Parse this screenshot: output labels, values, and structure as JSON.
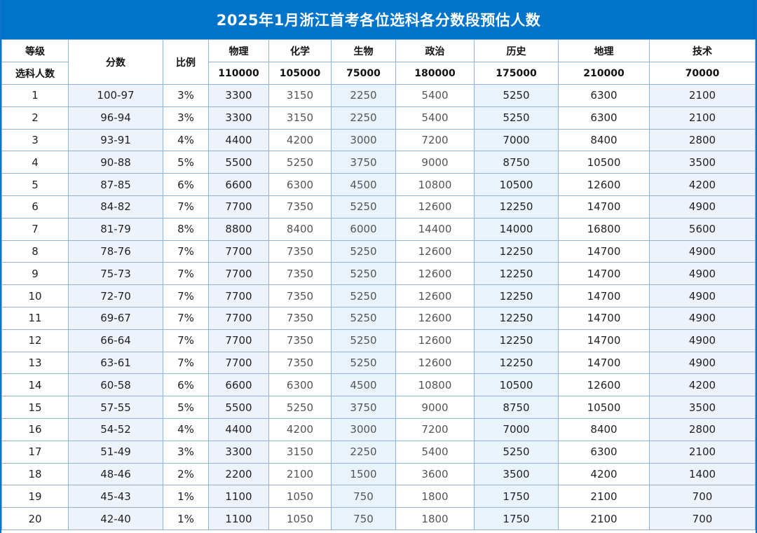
{
  "title": "2025年1月浙江首考各位选科各分数段预估人数",
  "header": {
    "grade_label": "等级",
    "enroll_label": "选科人数",
    "score_label": "分数",
    "ratio_label": "比例",
    "subjects": [
      {
        "name": "物理",
        "total": "110000"
      },
      {
        "name": "化学",
        "total": "105000"
      },
      {
        "name": "生物",
        "total": "75000"
      },
      {
        "name": "政治",
        "total": "180000"
      },
      {
        "name": "历史",
        "total": "175000"
      },
      {
        "name": "地理",
        "total": "210000"
      },
      {
        "name": "技术",
        "total": "70000"
      }
    ]
  },
  "rows": [
    {
      "grade": "1",
      "score": "100-97",
      "ratio": "3%",
      "v": [
        "3300",
        "3150",
        "2250",
        "5400",
        "5250",
        "6300",
        "2100"
      ]
    },
    {
      "grade": "2",
      "score": "96-94",
      "ratio": "3%",
      "v": [
        "3300",
        "3150",
        "2250",
        "5400",
        "5250",
        "6300",
        "2100"
      ]
    },
    {
      "grade": "3",
      "score": "93-91",
      "ratio": "4%",
      "v": [
        "4400",
        "4200",
        "3000",
        "7200",
        "7000",
        "8400",
        "2800"
      ]
    },
    {
      "grade": "4",
      "score": "90-88",
      "ratio": "5%",
      "v": [
        "5500",
        "5250",
        "3750",
        "9000",
        "8750",
        "10500",
        "3500"
      ]
    },
    {
      "grade": "5",
      "score": "87-85",
      "ratio": "6%",
      "v": [
        "6600",
        "6300",
        "4500",
        "10800",
        "10500",
        "12600",
        "4200"
      ]
    },
    {
      "grade": "6",
      "score": "84-82",
      "ratio": "7%",
      "v": [
        "7700",
        "7350",
        "5250",
        "12600",
        "12250",
        "14700",
        "4900"
      ]
    },
    {
      "grade": "7",
      "score": "81-79",
      "ratio": "8%",
      "v": [
        "8800",
        "8400",
        "6000",
        "14400",
        "14000",
        "16800",
        "5600"
      ]
    },
    {
      "grade": "8",
      "score": "78-76",
      "ratio": "7%",
      "v": [
        "7700",
        "7350",
        "5250",
        "12600",
        "12250",
        "14700",
        "4900"
      ]
    },
    {
      "grade": "9",
      "score": "75-73",
      "ratio": "7%",
      "v": [
        "7700",
        "7350",
        "5250",
        "12600",
        "12250",
        "14700",
        "4900"
      ]
    },
    {
      "grade": "10",
      "score": "72-70",
      "ratio": "7%",
      "v": [
        "7700",
        "7350",
        "5250",
        "12600",
        "12250",
        "14700",
        "4900"
      ]
    },
    {
      "grade": "11",
      "score": "69-67",
      "ratio": "7%",
      "v": [
        "7700",
        "7350",
        "5250",
        "12600",
        "12250",
        "14700",
        "4900"
      ]
    },
    {
      "grade": "12",
      "score": "66-64",
      "ratio": "7%",
      "v": [
        "7700",
        "7350",
        "5250",
        "12600",
        "12250",
        "14700",
        "4900"
      ]
    },
    {
      "grade": "13",
      "score": "63-61",
      "ratio": "7%",
      "v": [
        "7700",
        "7350",
        "5250",
        "12600",
        "12250",
        "14700",
        "4900"
      ]
    },
    {
      "grade": "14",
      "score": "60-58",
      "ratio": "6%",
      "v": [
        "6600",
        "6300",
        "4500",
        "10800",
        "10500",
        "12600",
        "4200"
      ]
    },
    {
      "grade": "15",
      "score": "57-55",
      "ratio": "5%",
      "v": [
        "5500",
        "5250",
        "3750",
        "9000",
        "8750",
        "10500",
        "3500"
      ]
    },
    {
      "grade": "16",
      "score": "54-52",
      "ratio": "4%",
      "v": [
        "4400",
        "4200",
        "3000",
        "7200",
        "7000",
        "8400",
        "2800"
      ]
    },
    {
      "grade": "17",
      "score": "51-49",
      "ratio": "3%",
      "v": [
        "3300",
        "3150",
        "2250",
        "5400",
        "5250",
        "6300",
        "2100"
      ]
    },
    {
      "grade": "18",
      "score": "48-46",
      "ratio": "2%",
      "v": [
        "2200",
        "2100",
        "1500",
        "3600",
        "3500",
        "4200",
        "1400"
      ]
    },
    {
      "grade": "19",
      "score": "45-43",
      "ratio": "1%",
      "v": [
        "1100",
        "1050",
        "750",
        "1800",
        "1750",
        "2100",
        "700"
      ]
    },
    {
      "grade": "20",
      "score": "42-40",
      "ratio": "1%",
      "v": [
        "1100",
        "1050",
        "750",
        "1800",
        "1750",
        "2100",
        "700"
      ]
    }
  ]
}
